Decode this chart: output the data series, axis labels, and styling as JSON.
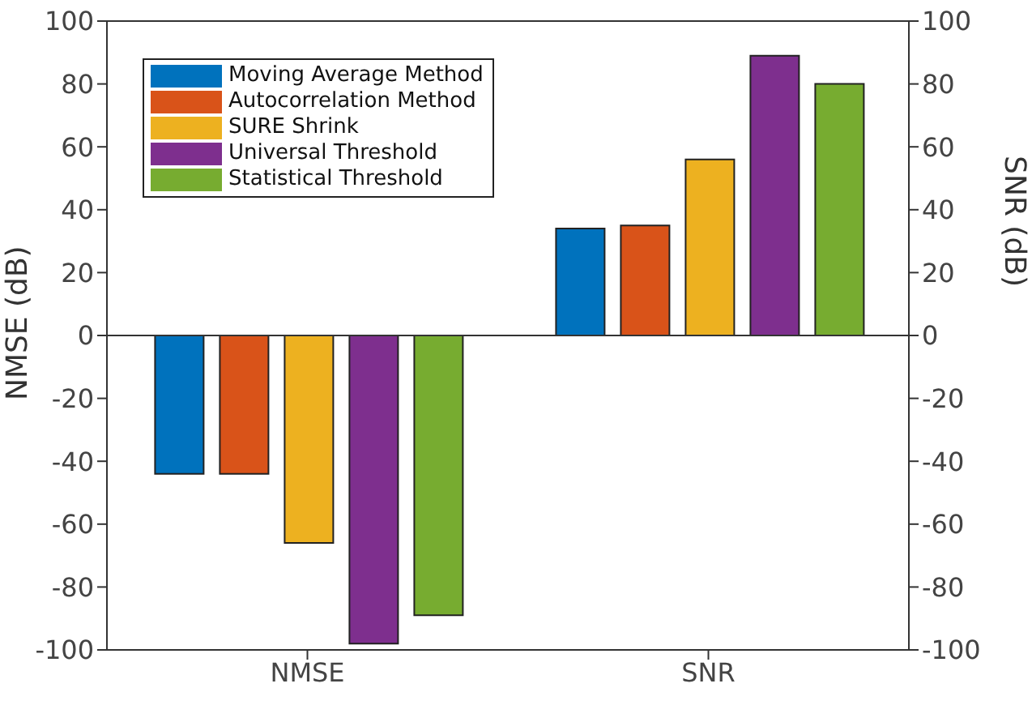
{
  "chart_data": {
    "type": "bar",
    "categories": [
      "NMSE",
      "SNR"
    ],
    "ylabel": "NMSE (dB)",
    "y2label": "SNR (dB)",
    "ylim": [
      -100,
      100
    ],
    "yticks": [
      -100,
      -80,
      -60,
      -40,
      -20,
      0,
      20,
      40,
      60,
      80,
      100
    ],
    "y2lim": [
      -100,
      100
    ],
    "y2ticks": [
      -100,
      -80,
      -60,
      -40,
      -20,
      0,
      20,
      40,
      60,
      80,
      100
    ],
    "series": [
      {
        "name": "Moving Average Method",
        "color": "#0072bd",
        "values": [
          -44,
          34
        ]
      },
      {
        "name": "Autocorrelation Method",
        "color": "#d95319",
        "values": [
          -44,
          35
        ]
      },
      {
        "name": "SURE Shrink",
        "color": "#edb120",
        "values": [
          -66,
          56
        ]
      },
      {
        "name": "Universal Threshold",
        "color": "#7e2f8e",
        "values": [
          -98,
          89
        ]
      },
      {
        "name": "Statistical Threshold",
        "color": "#77ac30",
        "values": [
          -89,
          80
        ]
      }
    ],
    "ref_lines": [
      {
        "axis": "y",
        "value": 0
      }
    ],
    "legend": "top left",
    "grid": false
  }
}
